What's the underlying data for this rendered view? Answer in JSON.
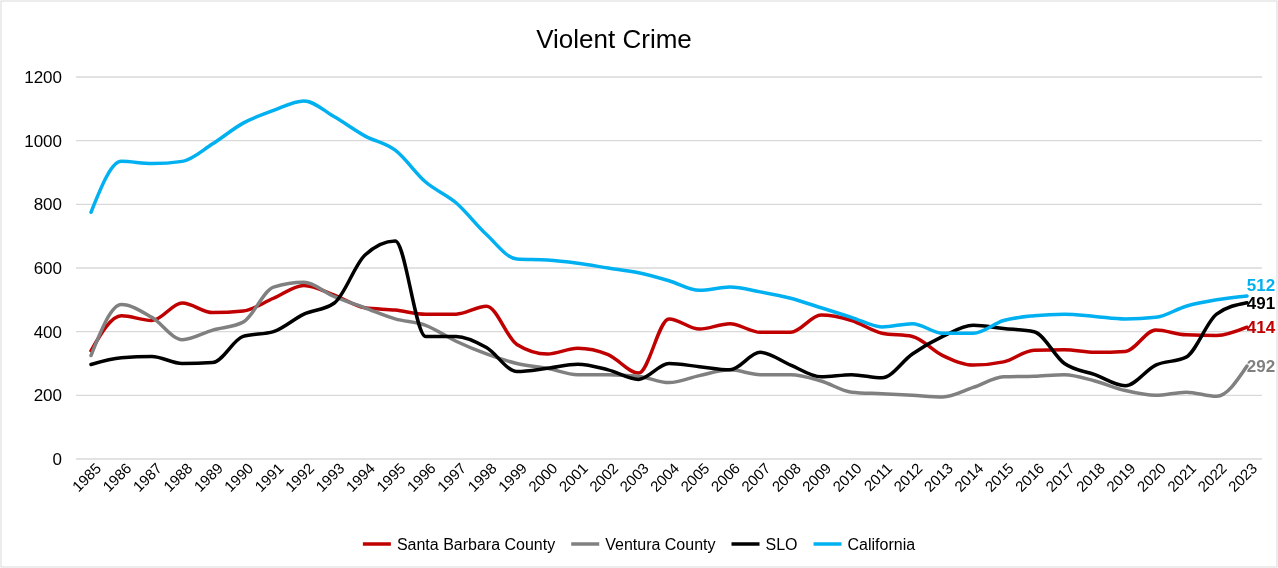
{
  "chart_data": {
    "type": "line",
    "title": "Violent Crime",
    "categories": [
      "1985",
      "1986",
      "1987",
      "1988",
      "1989",
      "1990",
      "1991",
      "1992",
      "1993",
      "1994",
      "1995",
      "1996",
      "1997",
      "1998",
      "1999",
      "2000",
      "2001",
      "2002",
      "2003",
      "2004",
      "2005",
      "2006",
      "2007",
      "2008",
      "2009",
      "2010",
      "2011",
      "2012",
      "2013",
      "2014",
      "2015",
      "2016",
      "2017",
      "2018",
      "2019",
      "2020",
      "2021",
      "2022",
      "2023"
    ],
    "series": [
      {
        "name": "Santa Barbara County",
        "color": "#c00000",
        "values": [
          340,
          450,
          435,
          490,
          460,
          465,
          505,
          545,
          515,
          475,
          468,
          455,
          455,
          480,
          360,
          330,
          348,
          328,
          270,
          440,
          408,
          425,
          398,
          398,
          452,
          435,
          395,
          385,
          325,
          295,
          305,
          342,
          343,
          335,
          338,
          405,
          390,
          388,
          414
        ],
        "value_labels": [
          null,
          null,
          null,
          null,
          null,
          null,
          null,
          null,
          null,
          null,
          null,
          null,
          null,
          null,
          null,
          null,
          null,
          null,
          null,
          null,
          null,
          null,
          null,
          null,
          null,
          null,
          null,
          null,
          null,
          null,
          null,
          null,
          null,
          null,
          null,
          null,
          null,
          null,
          "414"
        ]
      },
      {
        "name": "Ventura County",
        "color": "#808080",
        "values": [
          325,
          485,
          445,
          375,
          405,
          430,
          540,
          555,
          510,
          475,
          440,
          420,
          370,
          330,
          300,
          285,
          265,
          265,
          260,
          240,
          262,
          280,
          265,
          265,
          245,
          210,
          205,
          200,
          195,
          225,
          258,
          260,
          265,
          245,
          215,
          200,
          210,
          197,
          292
        ],
        "value_labels": [
          null,
          null,
          null,
          null,
          null,
          null,
          null,
          null,
          null,
          null,
          null,
          null,
          null,
          null,
          null,
          null,
          null,
          null,
          null,
          null,
          null,
          null,
          null,
          null,
          null,
          null,
          null,
          null,
          null,
          null,
          null,
          null,
          null,
          null,
          null,
          null,
          null,
          null,
          "292"
        ]
      },
      {
        "name": "SLO",
        "color": "#000000",
        "values": [
          297,
          318,
          322,
          300,
          303,
          385,
          400,
          455,
          490,
          640,
          685,
          385,
          385,
          350,
          275,
          285,
          298,
          280,
          250,
          300,
          290,
          280,
          335,
          295,
          258,
          265,
          255,
          330,
          385,
          420,
          410,
          400,
          300,
          265,
          230,
          295,
          320,
          455,
          491
        ],
        "value_labels": [
          null,
          null,
          null,
          null,
          null,
          null,
          null,
          null,
          null,
          null,
          null,
          null,
          null,
          null,
          null,
          null,
          null,
          null,
          null,
          null,
          null,
          null,
          null,
          null,
          null,
          null,
          null,
          null,
          null,
          null,
          null,
          null,
          null,
          null,
          null,
          null,
          null,
          null,
          "491"
        ]
      },
      {
        "name": "California",
        "color": "#00b0f0",
        "values": [
          775,
          935,
          928,
          935,
          990,
          1055,
          1095,
          1125,
          1075,
          1015,
          970,
          870,
          805,
          705,
          628,
          625,
          615,
          600,
          585,
          560,
          530,
          540,
          525,
          505,
          475,
          445,
          415,
          425,
          395,
          395,
          435,
          450,
          455,
          448,
          440,
          445,
          480,
          500,
          512
        ],
        "value_labels": [
          null,
          null,
          null,
          null,
          null,
          null,
          null,
          null,
          null,
          null,
          null,
          null,
          null,
          null,
          null,
          null,
          null,
          null,
          null,
          null,
          null,
          null,
          null,
          null,
          null,
          null,
          null,
          null,
          null,
          null,
          null,
          null,
          null,
          null,
          null,
          null,
          null,
          null,
          "512"
        ]
      }
    ],
    "ylim": [
      0,
      1200
    ],
    "yticks": [
      0,
      200,
      400,
      600,
      800,
      1000,
      1200
    ],
    "grid": "y",
    "legend": "bottom",
    "marker": "none",
    "line_style": "solid"
  }
}
